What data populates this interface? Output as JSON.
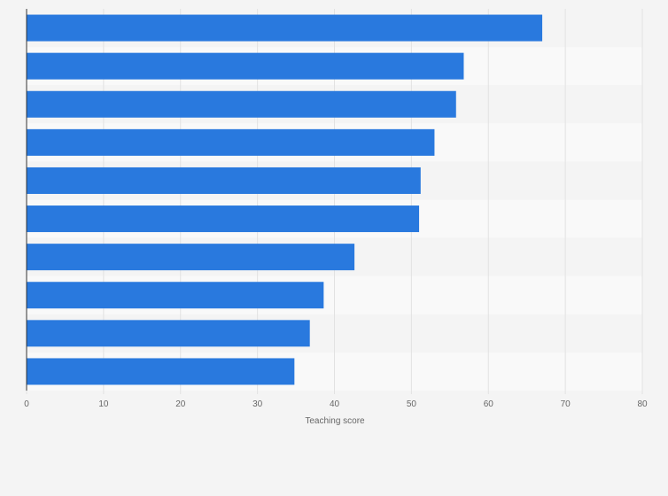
{
  "chart_data": {
    "type": "bar",
    "orientation": "horizontal",
    "title": "",
    "xlabel": "Teaching score",
    "ylabel": "",
    "categories": [
      "",
      "",
      "",
      "",
      "",
      "",
      "",
      "",
      "",
      ""
    ],
    "values": [
      67.0,
      56.8,
      55.8,
      53.0,
      51.2,
      51.0,
      42.6,
      38.6,
      36.8,
      34.8
    ],
    "xlim": [
      0,
      80
    ],
    "xticks": [
      "0",
      "10",
      "20",
      "30",
      "40",
      "50",
      "60",
      "70",
      "80"
    ],
    "grid": true,
    "legend": "none"
  },
  "colors": {
    "bar": "#2979de",
    "background": "#f4f4f4",
    "band_light": "#f9f9f9",
    "band_dark": "#f4f4f4",
    "gridline": "#e2e2e2",
    "axis": "#333333",
    "tick_text": "#666666"
  }
}
